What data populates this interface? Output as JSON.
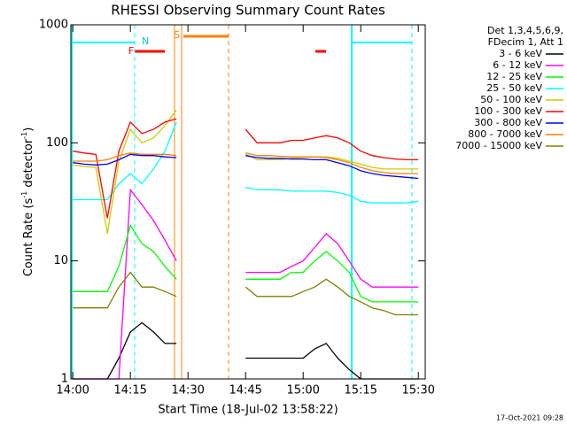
{
  "chart_data": {
    "type": "line",
    "title": "RHESSI Observing Summary Count Rates",
    "x_label": "Start Time (18-Jul-02 13:58:22)",
    "y_label_parts": [
      "Count Rate (s",
      "-1",
      " detector",
      "-1",
      ")"
    ],
    "legend_header": [
      "Det 1,3,4,5,6,9,",
      "FDecim 1, Att 1"
    ],
    "footer": "17-Oct-2021 09:28",
    "annotations": [
      "N",
      "S",
      "F"
    ],
    "log_y": true,
    "legend": "right",
    "xlim": [
      -0.5,
      91.8
    ],
    "xticks": [
      {
        "value": 0,
        "label": "14:00"
      },
      {
        "value": 15,
        "label": "14:15"
      },
      {
        "value": 30,
        "label": "14:30"
      },
      {
        "value": 45,
        "label": "14:45"
      },
      {
        "value": 60,
        "label": "15:00"
      },
      {
        "value": 75,
        "label": "15:15"
      },
      {
        "value": 90,
        "label": "15:30"
      }
    ],
    "ylim": [
      1,
      1000
    ],
    "yticks": [
      1,
      10,
      100,
      1000
    ],
    "x": [
      0,
      3,
      6,
      9,
      12,
      15,
      18,
      21,
      24,
      27,
      30,
      33,
      36,
      39,
      42,
      45,
      48,
      51,
      54,
      57,
      60,
      63,
      66,
      69,
      72,
      75,
      78,
      81,
      84,
      87,
      90
    ],
    "series": [
      {
        "name": "3 - 6 keV",
        "color": "#000000",
        "values": [
          1,
          1,
          1,
          1,
          1.5,
          2.5,
          3,
          2.5,
          2,
          2,
          null,
          null,
          null,
          null,
          null,
          1.5,
          1.5,
          1.5,
          1.5,
          1.5,
          1.5,
          1.8,
          2,
          1.5,
          1.2,
          1,
          1,
          1,
          1,
          1,
          1
        ]
      },
      {
        "name": "6 - 12 keV",
        "color": "#ff00ff",
        "values": [
          1,
          1,
          1,
          1,
          1,
          40,
          30,
          22,
          15,
          10,
          null,
          null,
          null,
          null,
          null,
          8,
          8,
          8,
          8,
          9,
          10,
          13,
          17,
          14,
          10,
          7,
          6,
          6,
          6,
          6,
          6
        ]
      },
      {
        "name": "12 - 25 keV",
        "color": "#00ff00",
        "values": [
          5.5,
          5.5,
          5.5,
          5.5,
          9,
          20,
          14,
          12,
          9,
          7,
          null,
          null,
          null,
          null,
          null,
          7,
          7,
          7,
          7,
          8,
          8,
          10,
          12,
          10,
          8,
          5,
          4.5,
          4.5,
          4.5,
          4.5,
          4.5
        ]
      },
      {
        "name": "25 - 50 keV",
        "color": "#00ffff",
        "values": [
          33,
          33,
          33,
          33,
          45,
          55,
          45,
          60,
          85,
          150,
          null,
          null,
          null,
          null,
          null,
          42,
          40,
          40,
          40,
          39,
          39,
          39,
          39,
          38,
          36,
          32,
          31,
          31,
          31,
          31,
          32
        ]
      },
      {
        "name": "50 - 100 keV",
        "color": "#cccc00",
        "values": [
          65,
          63,
          62,
          17,
          70,
          130,
          100,
          110,
          140,
          190,
          null,
          null,
          null,
          null,
          null,
          80,
          72,
          72,
          72,
          74,
          75,
          76,
          76,
          74,
          70,
          66,
          62,
          60,
          60,
          60,
          60
        ]
      },
      {
        "name": "100 - 300 keV",
        "color": "#ff0000",
        "values": [
          85,
          82,
          80,
          23,
          85,
          150,
          120,
          130,
          150,
          160,
          null,
          null,
          null,
          null,
          null,
          130,
          100,
          100,
          100,
          105,
          105,
          110,
          115,
          110,
          100,
          85,
          78,
          75,
          73,
          72,
          72
        ]
      },
      {
        "name": "300 - 800 keV",
        "color": "#0000ff",
        "values": [
          68,
          66,
          65,
          66,
          72,
          80,
          78,
          78,
          76,
          75,
          null,
          null,
          null,
          null,
          null,
          78,
          75,
          74,
          74,
          73,
          73,
          72,
          72,
          68,
          64,
          58,
          55,
          53,
          52,
          51,
          50
        ]
      },
      {
        "name": "800 - 7000 keV",
        "color": "#ff8000",
        "values": [
          70,
          70,
          70,
          72,
          78,
          82,
          80,
          80,
          80,
          78,
          null,
          null,
          null,
          null,
          null,
          82,
          78,
          78,
          77,
          76,
          76,
          76,
          75,
          72,
          68,
          62,
          58,
          56,
          55,
          55,
          55
        ]
      },
      {
        "name": "7000 - 15000 keV",
        "color": "#808000",
        "values": [
          4,
          4,
          4,
          4,
          6,
          8,
          6,
          6,
          5.5,
          5,
          null,
          null,
          null,
          null,
          null,
          6,
          5,
          5,
          5,
          5,
          5.5,
          6,
          7,
          6,
          5,
          4.5,
          4,
          3.8,
          3.5,
          3.5,
          3.5
        ]
      }
    ]
  }
}
